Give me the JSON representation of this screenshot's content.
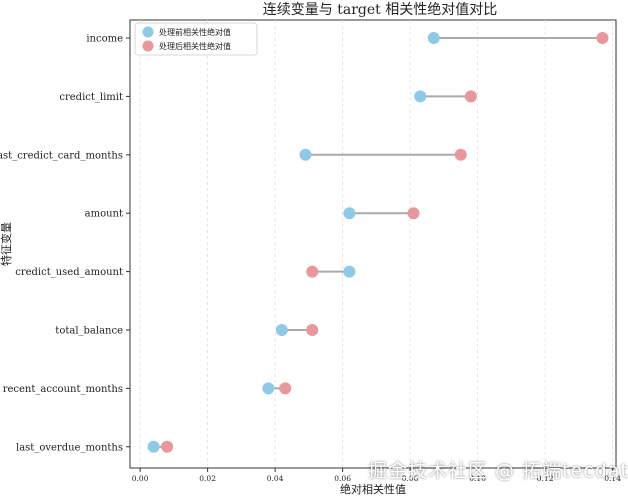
{
  "chart_data": {
    "type": "dumbbell",
    "title": "连续变量与 target 相关性绝对值对比",
    "xlabel": "绝对相关性值",
    "ylabel": "特征变量",
    "xlim": [
      -0.003,
      0.141
    ],
    "xticks": [
      0.0,
      0.02,
      0.04,
      0.06,
      0.08,
      0.1,
      0.12,
      0.14
    ],
    "xtick_labels": [
      "0.00",
      "0.02",
      "0.04",
      "0.06",
      "0.08",
      "0.10",
      "0.12",
      "0.14"
    ],
    "grid": "x-dashed",
    "legend_position": "top-left",
    "categories": [
      "income",
      "credict_limit",
      "last_credict_card_months",
      "amount",
      "credict_used_amount",
      "total_balance",
      "recent_account_months",
      "last_overdue_months"
    ],
    "series": [
      {
        "name": "处理前相关性绝对值",
        "color": "#8ecae6",
        "values": [
          0.087,
          0.083,
          0.049,
          0.062,
          0.062,
          0.042,
          0.038,
          0.004
        ]
      },
      {
        "name": "处理后相关性绝对值",
        "color": "#e8989b",
        "values": [
          0.137,
          0.098,
          0.095,
          0.081,
          0.051,
          0.051,
          0.043,
          0.008
        ]
      }
    ],
    "connector_color": "#aaaaaa"
  },
  "watermark": "掘金技术社区 @ 拓端tecdat"
}
